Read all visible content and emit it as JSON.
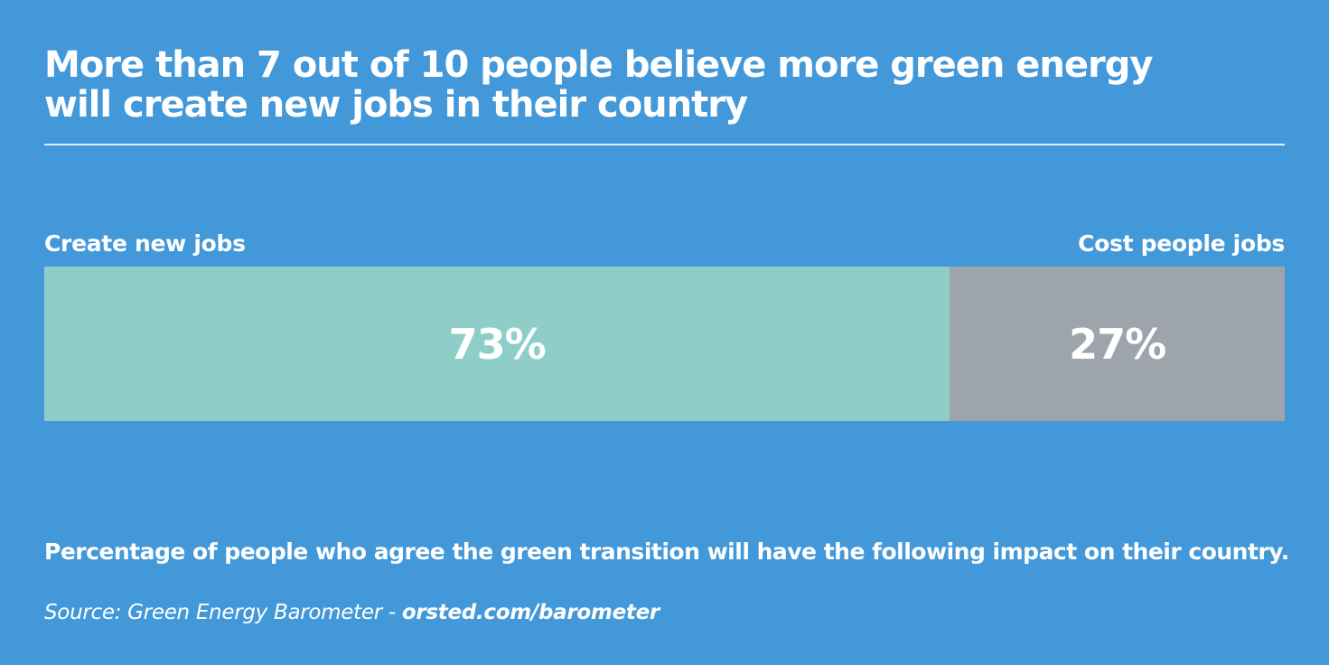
{
  "colors": {
    "background": "#4298d9",
    "positive": "#8fcec8",
    "negative": "#9ea4ac",
    "text": "#ffffff"
  },
  "title_lines": [
    "More than 7 out of 10 people believe more green energy",
    "will create new jobs in their country"
  ],
  "chart_data": {
    "type": "bar",
    "orientation": "horizontal-stacked-100",
    "categories": [
      "Create new jobs",
      "Cost people jobs"
    ],
    "values": [
      73,
      27
    ],
    "unit": "%",
    "value_labels": [
      "73%",
      "27%"
    ],
    "title": "More than 7 out of 10 people believe more green energy will create new jobs in their country",
    "subtitle": "Percentage of people who agree the green transition will have the following impact on their country.",
    "xlim": [
      0,
      100
    ],
    "grid": false,
    "legend": "none"
  },
  "footnote": "Percentage of people who agree the green transition will have the following impact on their country.",
  "source": {
    "prefix": "Source: Green Energy Barometer - ",
    "link": "orsted.com/barometer"
  }
}
